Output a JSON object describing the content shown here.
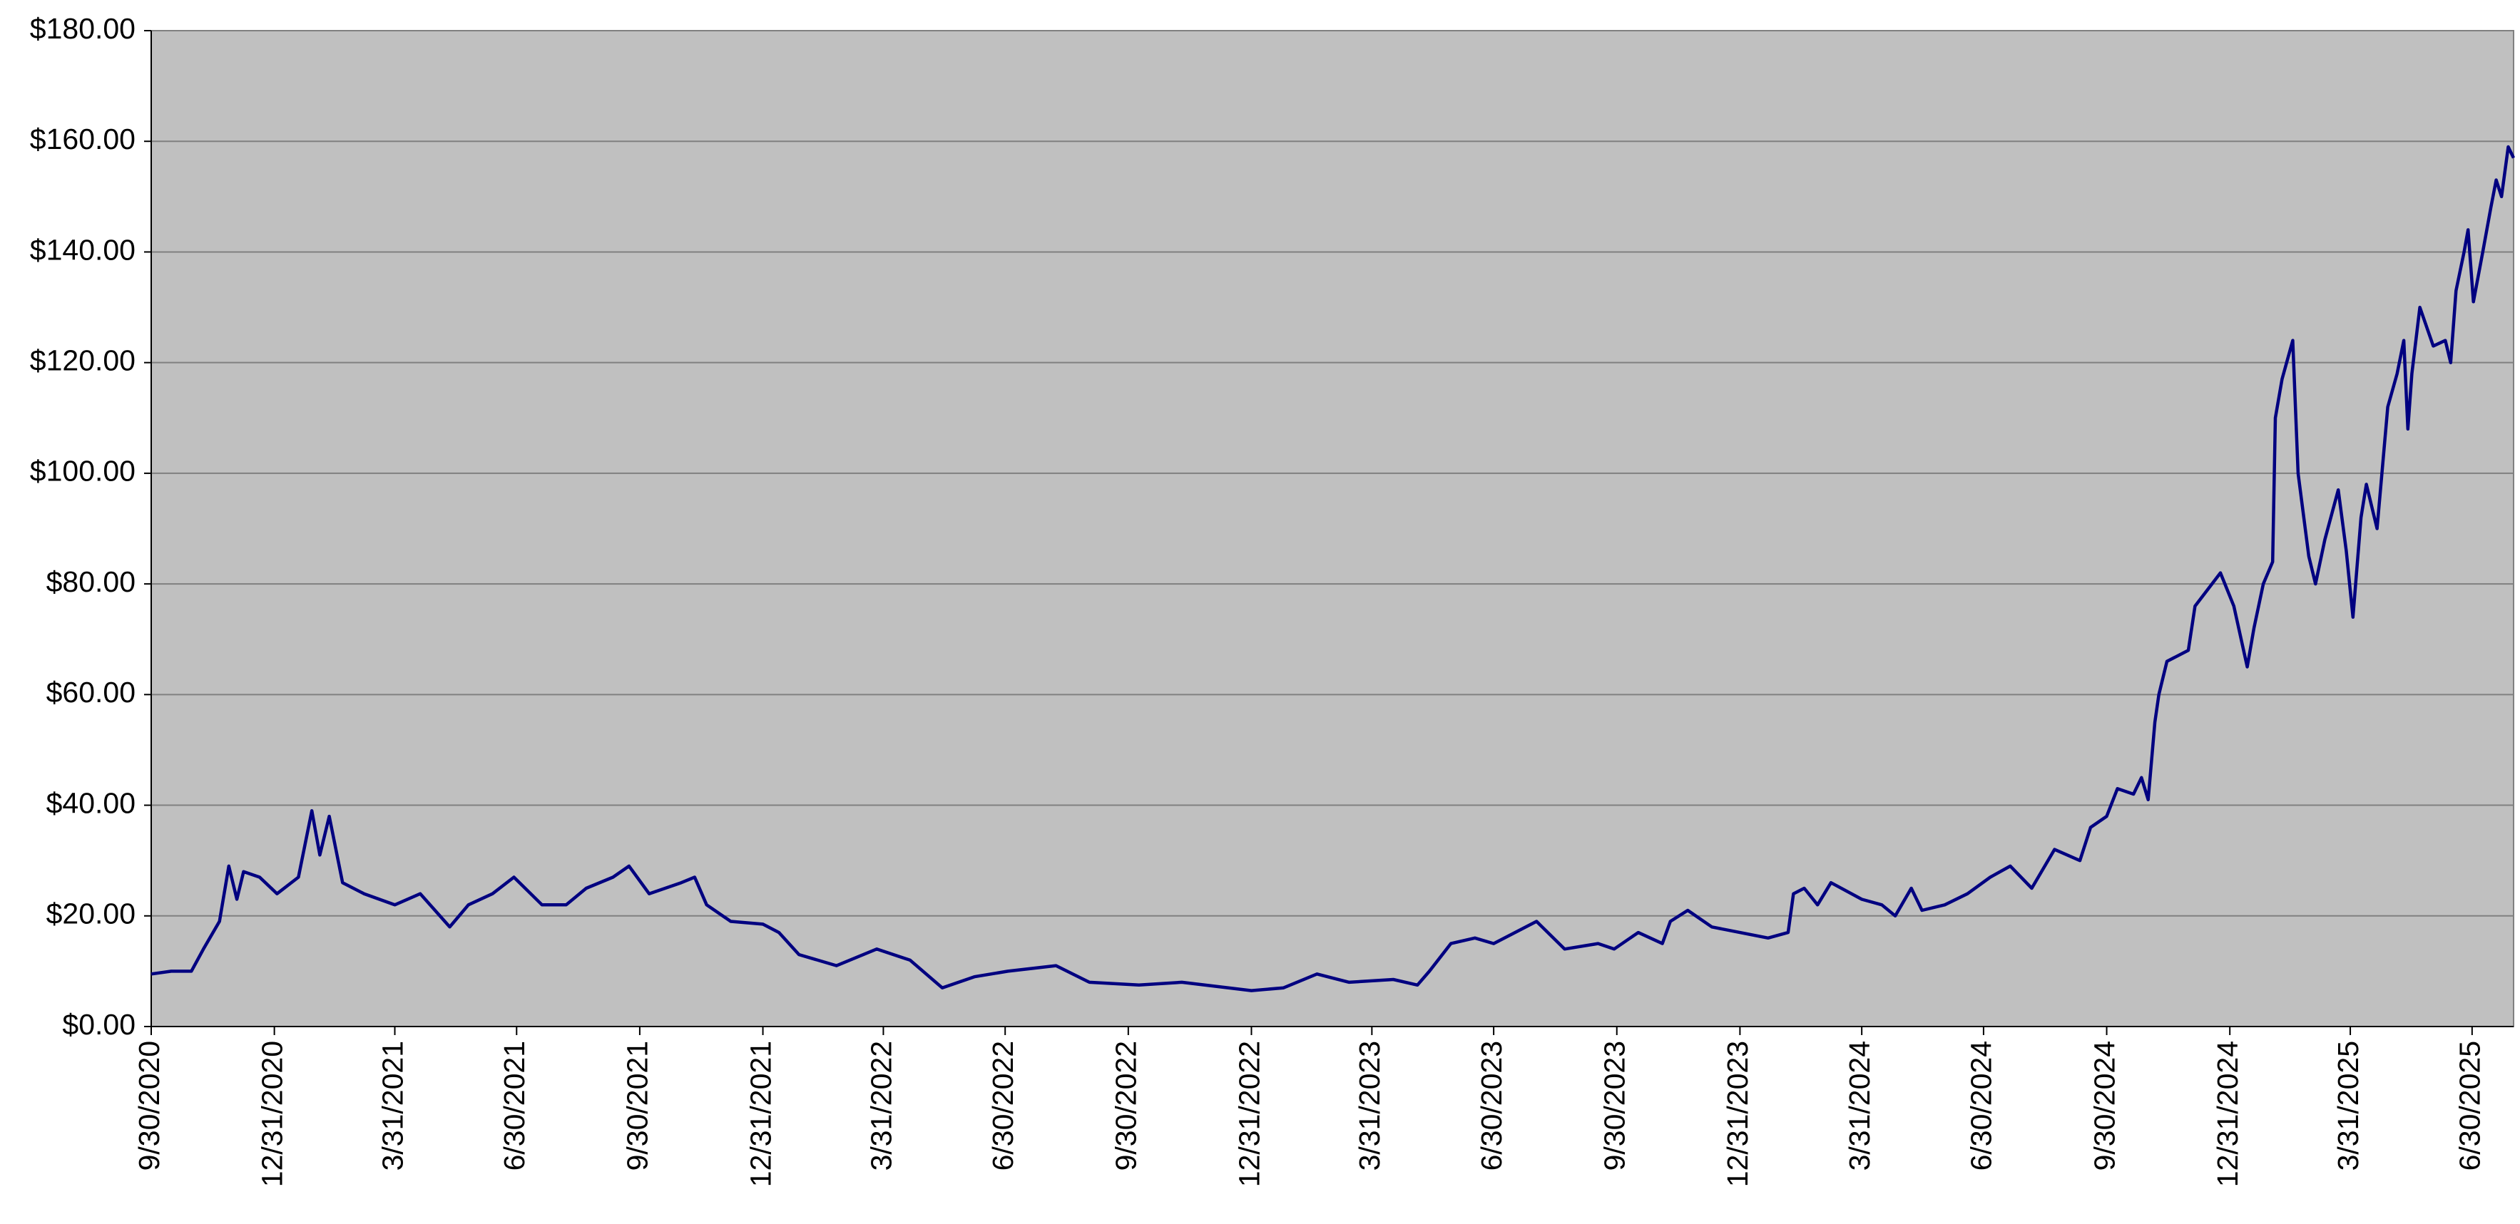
{
  "chart_data": {
    "type": "line",
    "xlim": [
      "9/30/2020",
      "7/31/2025"
    ],
    "xticks": [
      "9/30/2020",
      "12/31/2020",
      "3/31/2021",
      "6/30/2021",
      "9/30/2021",
      "12/31/2021",
      "3/31/2022",
      "6/30/2022",
      "9/30/2022",
      "12/31/2022",
      "3/31/2023",
      "6/30/2023",
      "9/30/2023",
      "12/31/2023",
      "3/31/2024",
      "6/30/2024",
      "9/30/2024",
      "12/31/2024",
      "3/31/2025",
      "6/30/2025"
    ],
    "ylim": [
      0,
      180
    ],
    "yticks": [
      {
        "value": 0,
        "label": "$0.00"
      },
      {
        "value": 20,
        "label": "$20.00"
      },
      {
        "value": 40,
        "label": "$40.00"
      },
      {
        "value": 60,
        "label": "$60.00"
      },
      {
        "value": 80,
        "label": "$80.00"
      },
      {
        "value": 100,
        "label": "$100.00"
      },
      {
        "value": 120,
        "label": "$120.00"
      },
      {
        "value": 140,
        "label": "$140.00"
      },
      {
        "value": 160,
        "label": "$160.00"
      },
      {
        "value": 180,
        "label": "$180.00"
      }
    ],
    "grid": true,
    "series": [
      {
        "color": "#000080",
        "x": [
          "9/30/2020",
          "10/15/2020",
          "10/30/2020",
          "11/8/2020",
          "11/20/2020",
          "11/27/2020",
          "12/3/2020",
          "12/8/2020",
          "12/20/2020",
          "1/2/2021",
          "1/18/2021",
          "1/28/2021",
          "2/3/2021",
          "2/10/2021",
          "2/20/2021",
          "3/8/2021",
          "3/31/2021",
          "4/19/2021",
          "5/11/2021",
          "5/25/2021",
          "6/12/2021",
          "6/28/2021",
          "7/19/2021",
          "8/6/2021",
          "8/21/2021",
          "9/10/2021",
          "9/22/2021",
          "10/7/2021",
          "10/31/2021",
          "11/10/2021",
          "11/19/2021",
          "12/7/2021",
          "12/31/2021",
          "1/12/2022",
          "1/27/2022",
          "2/24/2022",
          "3/26/2022",
          "4/20/2022",
          "5/14/2022",
          "6/7/2022",
          "7/2/2022",
          "8/7/2022",
          "9/1/2022",
          "10/8/2022",
          "11/9/2022",
          "12/31/2022",
          "1/24/2023",
          "2/18/2023",
          "3/14/2023",
          "4/16/2023",
          "5/4/2023",
          "5/13/2023",
          "5/29/2023",
          "6/16/2023",
          "6/30/2023",
          "8/1/2023",
          "8/22/2023",
          "9/16/2023",
          "9/28/2023",
          "10/16/2023",
          "11/3/2023",
          "11/9/2023",
          "11/22/2023",
          "12/10/2023",
          "12/31/2023",
          "1/21/2024",
          "2/5/2024",
          "2/9/2024",
          "2/17/2024",
          "2/27/2024",
          "3/8/2024",
          "3/31/2024",
          "4/15/2024",
          "4/25/2024",
          "5/7/2024",
          "5/15/2024",
          "6/1/2024",
          "6/18/2024",
          "7/5/2024",
          "7/20/2024",
          "8/5/2024",
          "8/22/2024",
          "9/10/2024",
          "9/18/2024",
          "9/30/2024",
          "10/8/2024",
          "10/20/2024",
          "10/26/2024",
          "10/31/2024",
          "11/5/2024",
          "11/8/2024",
          "11/14/2024",
          "11/30/2024",
          "12/5/2024",
          "12/24/2024",
          "1/3/2025",
          "1/13/2025",
          "1/18/2025",
          "1/25/2025",
          "2/1/2025",
          "2/3/2025",
          "2/8/2025",
          "2/16/2025",
          "2/20/2025",
          "2/28/2025",
          "3/5/2025",
          "3/12/2025",
          "3/22/2025",
          "3/28/2025",
          "4/2/2025",
          "4/8/2025",
          "4/12/2025",
          "4/20/2025",
          "4/28/2025",
          "5/5/2025",
          "5/10/2025",
          "5/13/2025",
          "5/16/2025",
          "5/22/2025",
          "6/1/2025",
          "6/10/2025",
          "6/14/2025",
          "6/18/2025",
          "6/24/2025",
          "6/27/2025",
          "7/1/2025",
          "7/8/2025",
          "7/14/2025",
          "7/18/2025",
          "7/22/2025",
          "7/27/2025",
          "7/31/2025"
        ],
        "values": [
          9.5,
          10,
          10,
          14,
          19,
          29,
          23,
          28,
          27,
          24,
          27,
          39,
          31,
          38,
          26,
          24,
          22,
          24,
          18,
          22,
          24,
          27,
          22,
          22,
          25,
          27,
          29,
          24,
          26,
          27,
          22,
          19,
          18.5,
          17,
          13,
          11,
          14,
          12,
          7,
          9,
          10,
          11,
          8,
          7.5,
          8,
          6.5,
          7,
          9.5,
          8,
          8.5,
          7.5,
          10,
          15,
          16,
          15,
          19,
          14,
          15,
          14,
          17,
          15,
          19,
          21,
          18,
          17,
          16,
          17,
          24,
          25,
          22,
          26,
          23,
          22,
          20,
          25,
          21,
          22,
          24,
          27,
          29,
          25,
          32,
          30,
          36,
          38,
          43,
          42,
          45,
          41,
          55,
          60,
          66,
          68,
          76,
          82,
          76,
          65,
          72,
          80,
          84,
          110,
          117,
          124,
          100,
          85,
          80,
          88,
          97,
          86,
          74,
          92,
          98,
          90,
          112,
          118,
          124,
          108,
          118,
          130,
          123,
          124,
          120,
          133,
          140,
          144,
          131,
          140,
          148,
          153,
          150,
          159,
          157
        ]
      }
    ]
  }
}
